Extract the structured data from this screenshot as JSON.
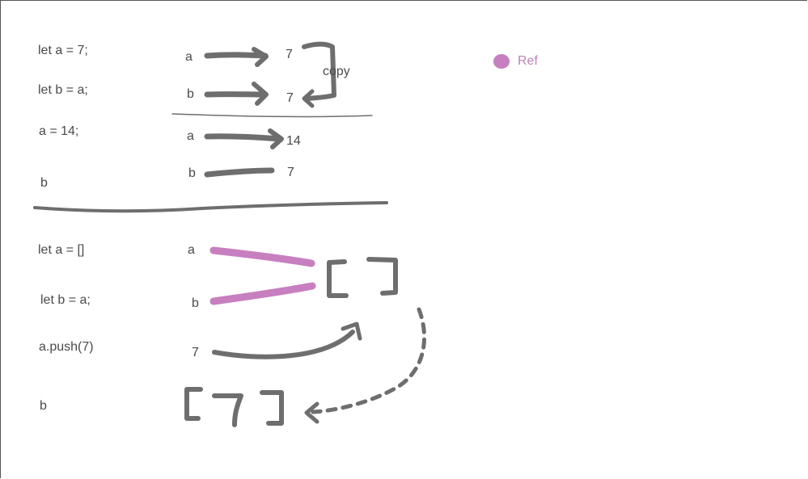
{
  "code": {
    "line1": "let a = 7;",
    "line2": "let b = a;",
    "line3": "a = 14;",
    "line4": "b",
    "line5": "let a = []",
    "line6": "let b = a;",
    "line7": "a.push(7)",
    "line8": "b"
  },
  "vars": {
    "a1": "a",
    "b1": "b",
    "a2": "a",
    "b2": "b",
    "a3": "a",
    "b3": "b",
    "seven_src": "7"
  },
  "values": {
    "v7_top": "7",
    "v7_copy": "7",
    "v14": "14",
    "v7_b": "7"
  },
  "labels": {
    "copy": "copy"
  },
  "legend": {
    "label": "Ref",
    "color": "#c77fbf"
  },
  "colors": {
    "ink": "#6b6b6b",
    "ref": "#c77fbf"
  }
}
